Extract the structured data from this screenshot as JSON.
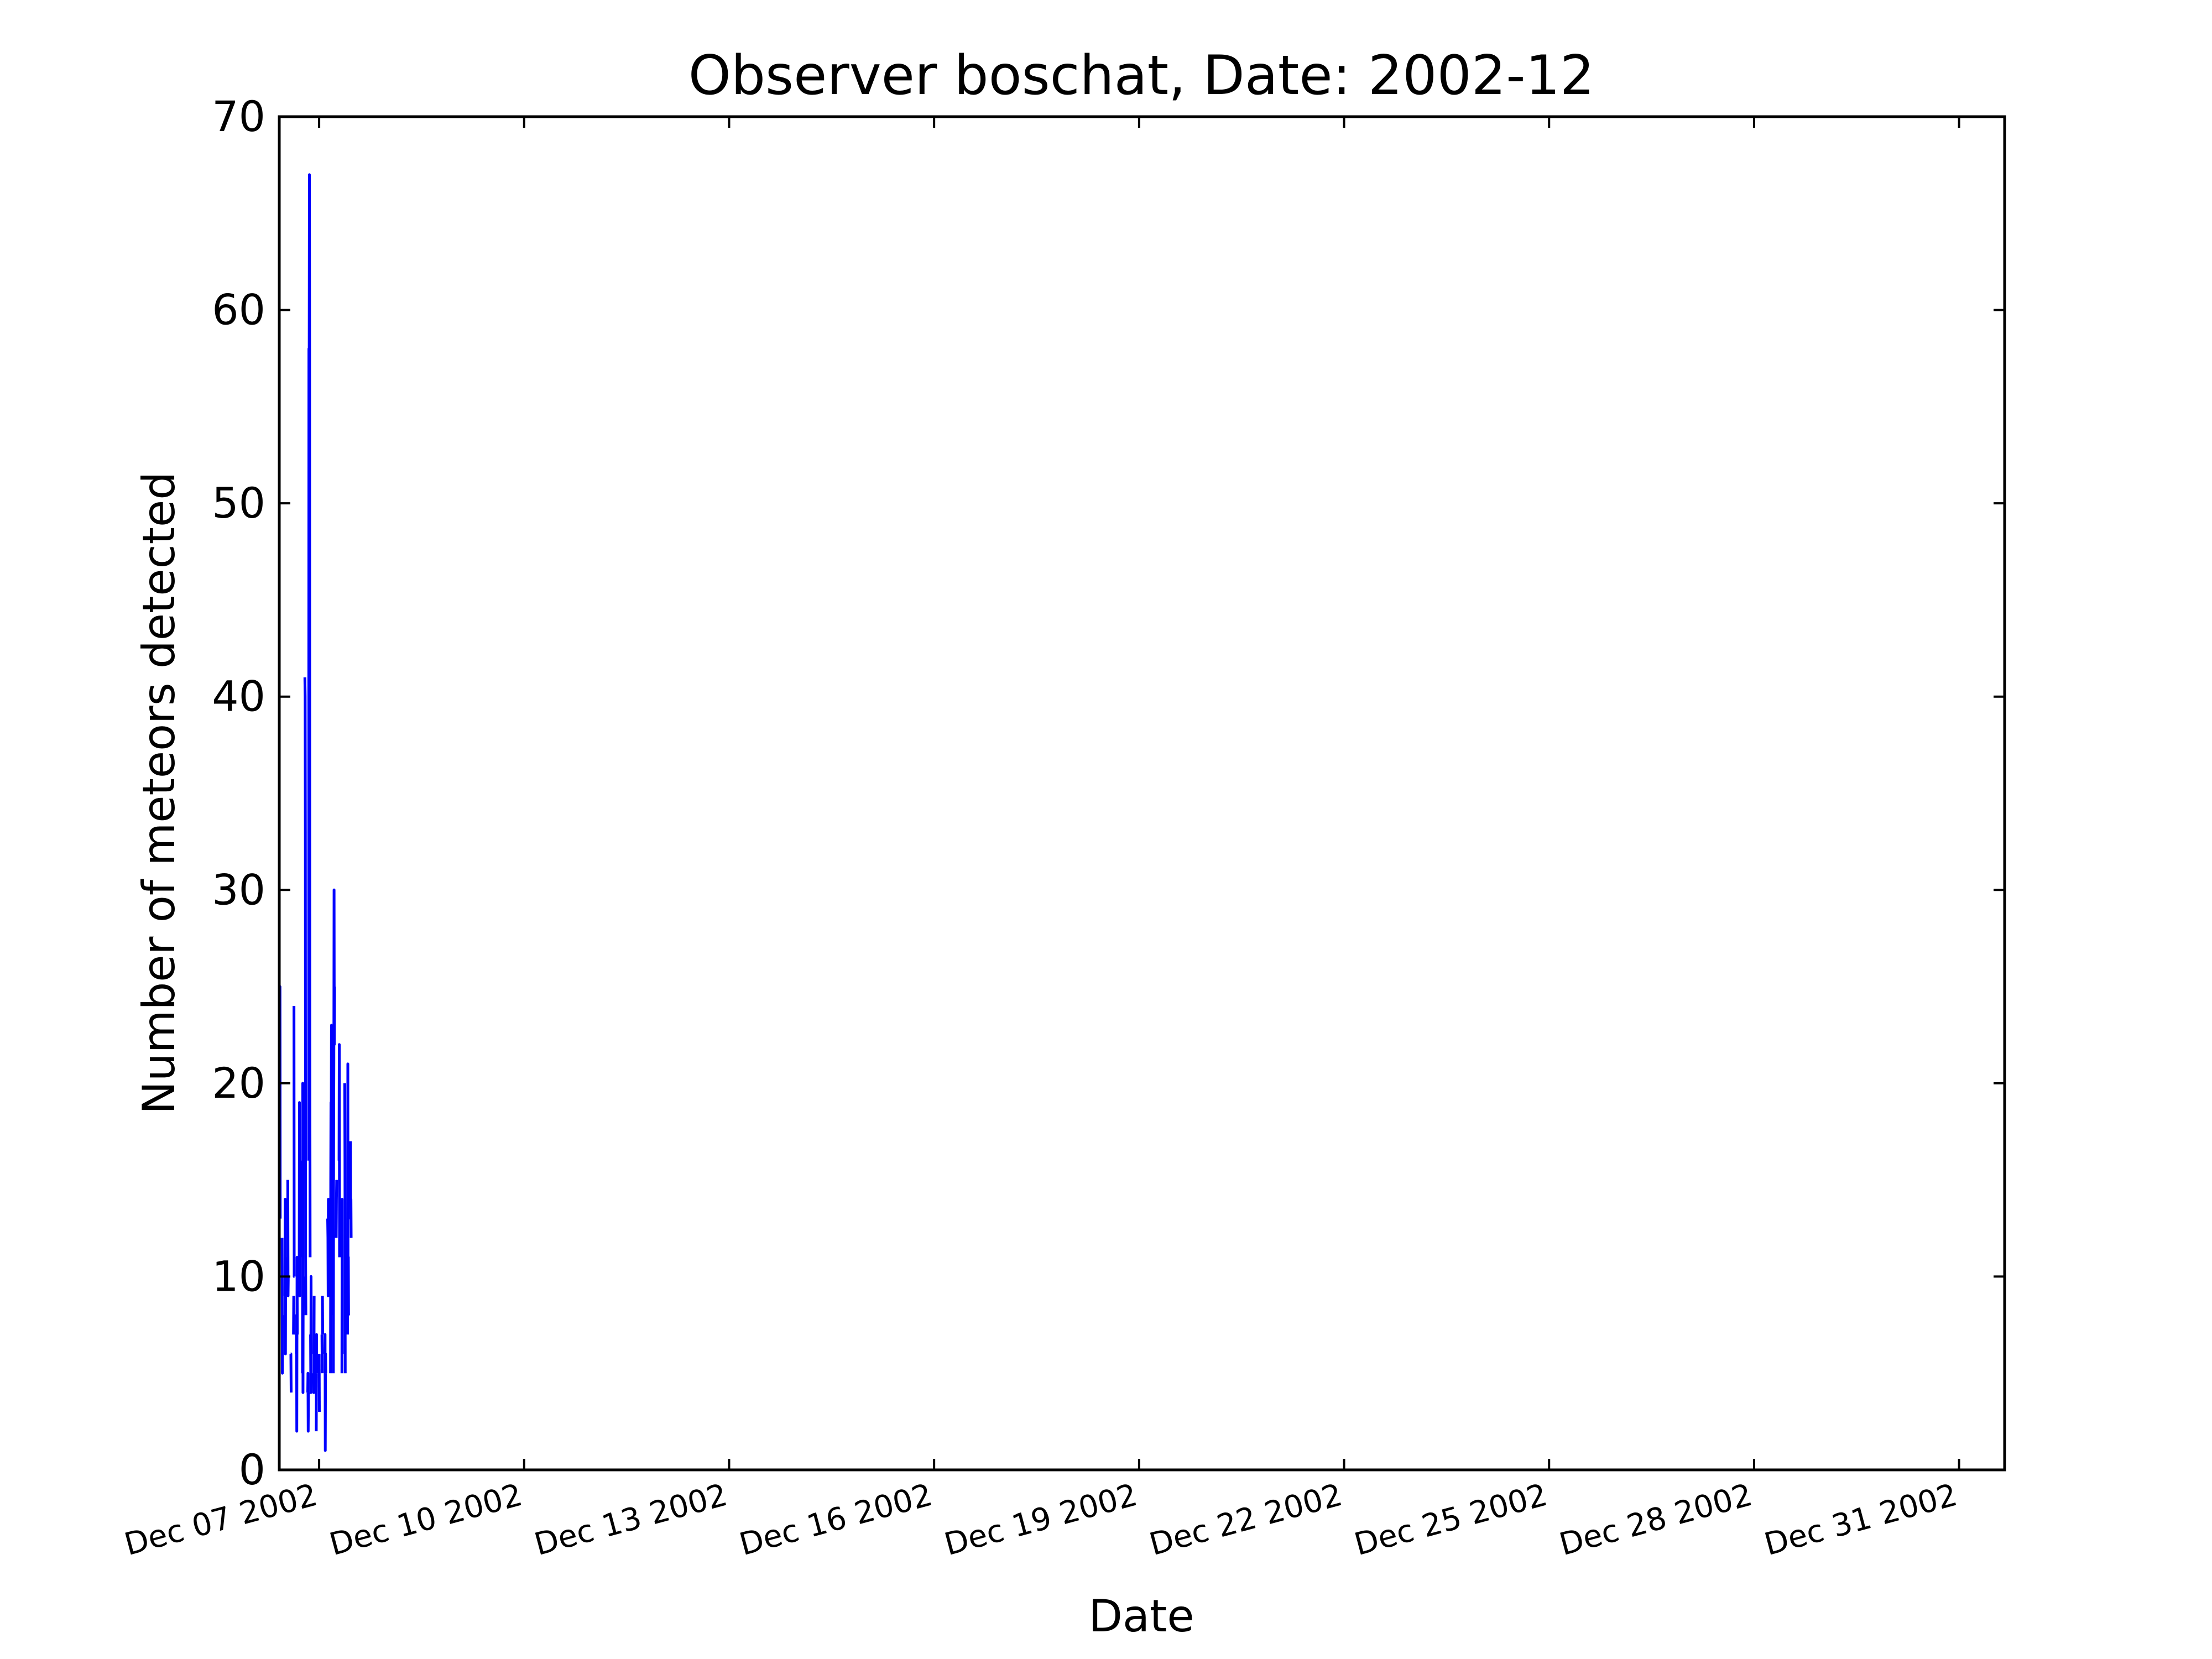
{
  "chart_data": {
    "type": "line",
    "title": "Observer boschat, Date: 2002-12",
    "xlabel": "Date",
    "ylabel": "Number of meteors detected",
    "ylim": [
      0,
      70
    ],
    "yticks": [
      0,
      10,
      20,
      30,
      40,
      50,
      60,
      70
    ],
    "yticks_labels": [
      "0",
      "10",
      "20",
      "30",
      "40",
      "50",
      "60",
      "70"
    ],
    "xlim": [
      "2002-12-06T10:00",
      "2002-12-31T16:00"
    ],
    "xticks": [
      "2002-12-07",
      "2002-12-10",
      "2002-12-13",
      "2002-12-16",
      "2002-12-19",
      "2002-12-22",
      "2002-12-25",
      "2002-12-28",
      "2002-12-31"
    ],
    "xticks_labels": [
      "Dec 07 2002",
      "Dec 10 2002",
      "Dec 13 2002",
      "Dec 16 2002",
      "Dec 19 2002",
      "Dec 22 2002",
      "Dec 25 2002",
      "Dec 28 2002",
      "Dec 31 2002"
    ],
    "grid": false,
    "line_color": "#0000ff",
    "series": [
      {
        "segments": [
          [
            [
              "2002-12-06T10:00",
              25
            ],
            [
              "2002-12-06T10:05",
              18
            ],
            [
              "2002-12-06T10:10",
              25
            ],
            [
              "2002-12-06T10:15",
              18
            ]
          ],
          [
            [
              "2002-12-06T10:10",
              24
            ],
            [
              "2002-12-06T10:15",
              25
            ],
            [
              "2002-12-06T10:20",
              13
            ]
          ],
          [
            [
              "2002-12-06T11:00",
              12
            ],
            [
              "2002-12-06T11:05",
              5
            ],
            [
              "2002-12-06T11:10",
              8
            ]
          ],
          [
            [
              "2002-12-06T12:00",
              9
            ],
            [
              "2002-12-06T12:05",
              14
            ],
            [
              "2002-12-06T12:10",
              6
            ],
            [
              "2002-12-06T12:15",
              11
            ]
          ],
          [
            [
              "2002-12-06T13:00",
              15
            ],
            [
              "2002-12-06T13:05",
              9
            ],
            [
              "2002-12-06T13:10",
              10
            ]
          ],
          [
            [
              "2002-12-06T14:00",
              6
            ],
            [
              "2002-12-06T14:05",
              6
            ],
            [
              "2002-12-06T14:10",
              4
            ]
          ],
          [
            [
              "2002-12-06T15:00",
              7
            ],
            [
              "2002-12-06T15:05",
              9
            ]
          ],
          [
            [
              "2002-12-06T15:10",
              24
            ],
            [
              "2002-12-06T15:15",
              10
            ],
            [
              "2002-12-06T15:20",
              10
            ]
          ],
          [
            [
              "2002-12-06T16:00",
              6
            ],
            [
              "2002-12-06T16:05",
              8
            ],
            [
              "2002-12-06T16:10",
              2
            ],
            [
              "2002-12-06T16:15",
              11
            ],
            [
              "2002-12-06T16:20",
              7
            ]
          ],
          [
            [
              "2002-12-06T17:00",
              9
            ],
            [
              "2002-12-06T17:05",
              19
            ],
            [
              "2002-12-06T17:10",
              9
            ],
            [
              "2002-12-06T17:15",
              15
            ]
          ],
          [
            [
              "2002-12-06T18:00",
              16
            ],
            [
              "2002-12-06T18:05",
              11
            ]
          ],
          [
            [
              "2002-12-06T18:10",
              5
            ],
            [
              "2002-12-06T18:15",
              20
            ],
            [
              "2002-12-06T18:20",
              4
            ],
            [
              "2002-12-06T18:25",
              10
            ]
          ],
          [
            [
              "2002-12-06T19:00",
              41
            ],
            [
              "2002-12-06T19:05",
              40
            ],
            [
              "2002-12-06T19:10",
              33
            ],
            [
              "2002-12-06T19:15",
              11
            ],
            [
              "2002-12-06T19:20",
              8
            ]
          ],
          [
            [
              "2002-12-06T20:00",
              4
            ],
            [
              "2002-12-06T20:05",
              5
            ],
            [
              "2002-12-06T20:10",
              2
            ],
            [
              "2002-12-06T20:15",
              4
            ]
          ],
          [
            [
              "2002-12-06T20:20",
              16
            ],
            [
              "2002-12-06T20:25",
              58
            ],
            [
              "2002-12-06T20:30",
              57
            ],
            [
              "2002-12-06T20:35",
              67
            ],
            [
              "2002-12-06T20:40",
              58
            ],
            [
              "2002-12-06T20:45",
              22
            ],
            [
              "2002-12-06T20:50",
              11
            ]
          ],
          [
            [
              "2002-12-06T21:00",
              7
            ],
            [
              "2002-12-06T21:05",
              4
            ],
            [
              "2002-12-06T21:10",
              10
            ],
            [
              "2002-12-06T21:15",
              6
            ]
          ],
          [
            [
              "2002-12-06T22:00",
              5
            ],
            [
              "2002-12-06T22:05",
              4
            ],
            [
              "2002-12-06T22:10",
              4
            ],
            [
              "2002-12-06T22:15",
              9
            ]
          ],
          [
            [
              "2002-12-06T23:00",
              2
            ],
            [
              "2002-12-06T23:05",
              7
            ],
            [
              "2002-12-06T23:10",
              5
            ]
          ],
          [
            [
              "2002-12-07T00:00",
              6
            ],
            [
              "2002-12-07T00:05",
              3
            ]
          ],
          [
            [
              "2002-12-07T01:00",
              7
            ],
            [
              "2002-12-07T01:05",
              5
            ]
          ],
          [
            [
              "2002-12-07T01:10",
              9
            ],
            [
              "2002-12-07T01:15",
              7
            ]
          ],
          [
            [
              "2002-12-07T02:00",
              6
            ],
            [
              "2002-12-07T02:05",
              7
            ],
            [
              "2002-12-07T02:10",
              1
            ],
            [
              "2002-12-07T02:15",
              6
            ],
            [
              "2002-12-07T02:20",
              5
            ]
          ],
          [
            [
              "2002-12-07T03:00",
              13
            ],
            [
              "2002-12-07T03:05",
              12
            ],
            [
              "2002-12-07T03:10",
              9
            ],
            [
              "2002-12-07T03:15",
              14
            ],
            [
              "2002-12-07T03:20",
              12
            ],
            [
              "2002-12-07T03:25",
              14
            ]
          ],
          [
            [
              "2002-12-07T04:00",
              5
            ],
            [
              "2002-12-07T04:05",
              15
            ],
            [
              "2002-12-07T04:10",
              19
            ],
            [
              "2002-12-07T04:15",
              18
            ],
            [
              "2002-12-07T04:20",
              23
            ],
            [
              "2002-12-07T04:25",
              8
            ]
          ],
          [
            [
              "2002-12-07T05:00",
              5
            ],
            [
              "2002-12-07T05:05",
              17
            ],
            [
              "2002-12-07T05:10",
              21
            ],
            [
              "2002-12-07T05:15",
              30
            ],
            [
              "2002-12-07T05:20",
              22
            ],
            [
              "2002-12-07T05:25",
              25
            ]
          ],
          [
            [
              "2002-12-07T06:00",
              12
            ],
            [
              "2002-12-07T06:05",
              14
            ],
            [
              "2002-12-07T06:10",
              15
            ]
          ],
          [
            [
              "2002-12-07T07:00",
              16
            ],
            [
              "2002-12-07T07:05",
              22
            ],
            [
              "2002-12-07T07:10",
              11
            ]
          ],
          [
            [
              "2002-12-07T08:00",
              5
            ],
            [
              "2002-12-07T08:05",
              14
            ],
            [
              "2002-12-07T08:10",
              6
            ]
          ],
          [
            [
              "2002-12-07T09:00",
              20
            ],
            [
              "2002-12-07T09:05",
              16
            ],
            [
              "2002-12-07T09:10",
              5
            ]
          ],
          [
            [
              "2002-12-07T10:00",
              7
            ],
            [
              "2002-12-07T10:05",
              21
            ],
            [
              "2002-12-07T10:10",
              8
            ],
            [
              "2002-12-07T10:15",
              11
            ],
            [
              "2002-12-07T10:20",
              8
            ]
          ],
          [
            [
              "2002-12-07T11:00",
              17
            ],
            [
              "2002-12-07T11:05",
              13
            ],
            [
              "2002-12-07T11:10",
              14
            ],
            [
              "2002-12-07T11:15",
              12
            ]
          ]
        ]
      }
    ]
  }
}
